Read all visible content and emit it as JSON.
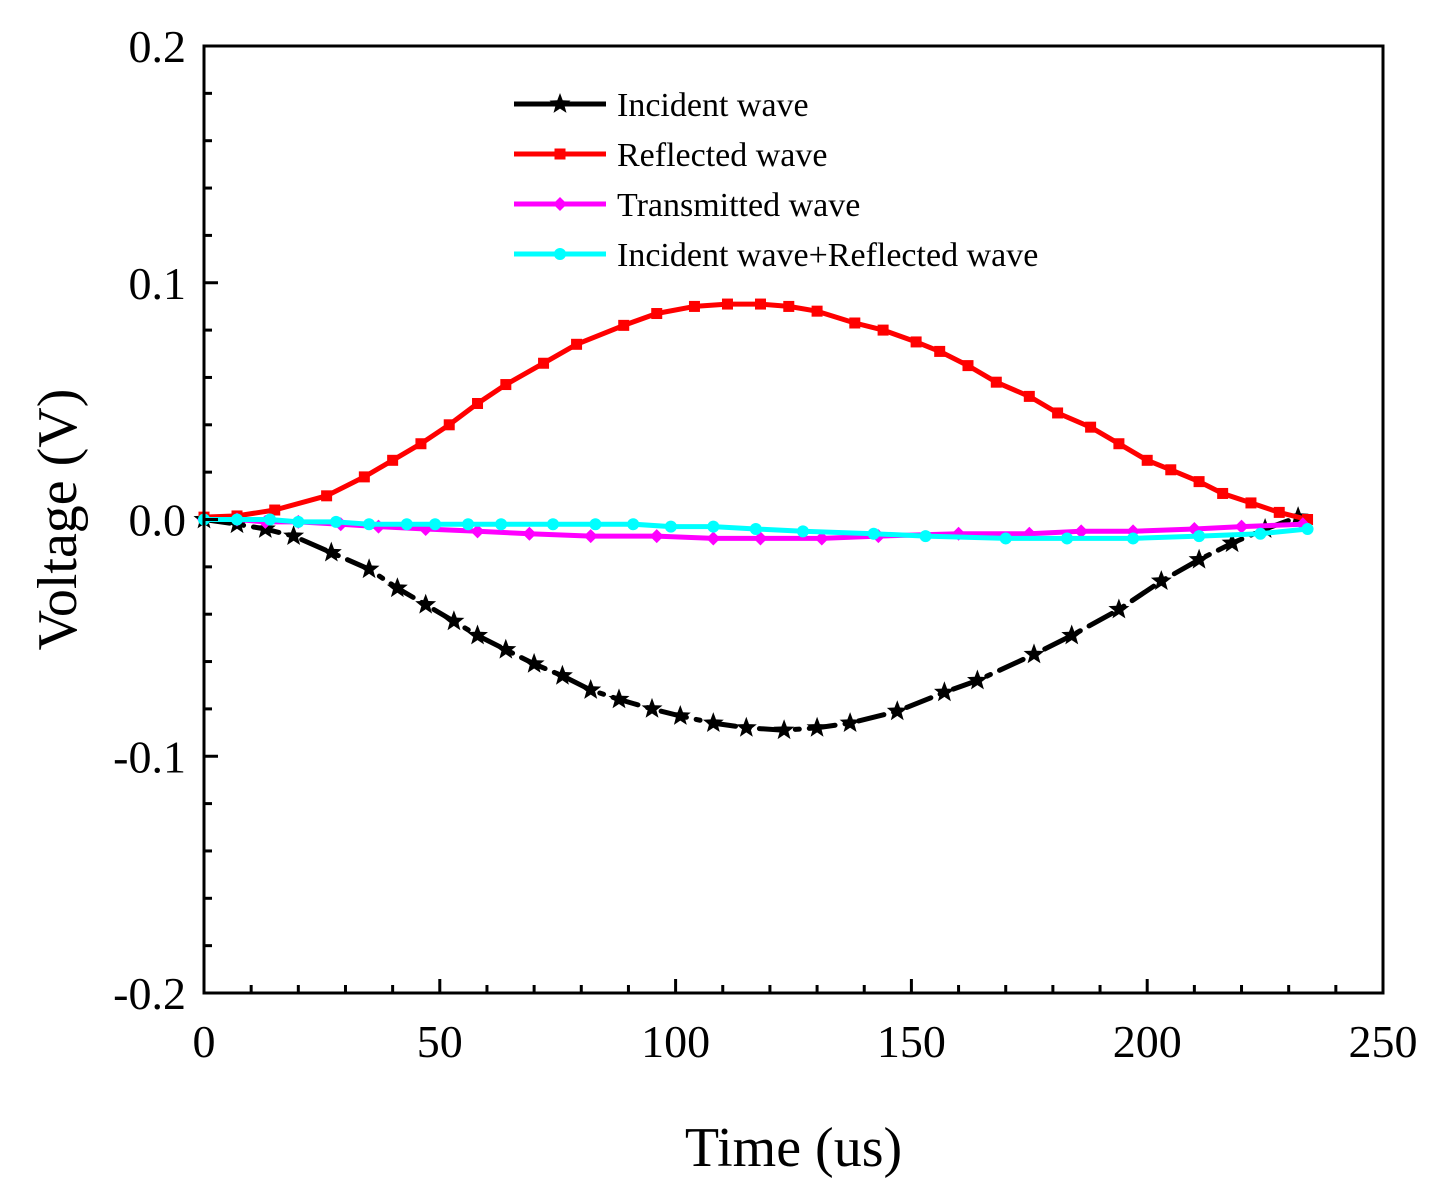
{
  "chart_data": {
    "type": "line",
    "title": "",
    "xlabel": "Time (us)",
    "ylabel": "Voltage (V)",
    "xlim": [
      0,
      250
    ],
    "ylim": [
      -0.2,
      0.2
    ],
    "xticks": [
      0,
      50,
      100,
      150,
      200,
      250
    ],
    "xtick_labels": [
      "0",
      "50",
      "100",
      "150",
      "200",
      "250"
    ],
    "yticks": [
      -0.2,
      -0.1,
      0.0,
      0.1,
      0.2
    ],
    "ytick_labels": [
      "-0.2",
      "-0.1",
      "0.0",
      "0.1",
      "0.2"
    ],
    "grid": false,
    "legend_position": "top-center",
    "series": [
      {
        "name": "Incident wave",
        "color": "#000000",
        "marker": "star",
        "x": [
          0,
          7,
          13,
          19,
          27,
          35,
          41,
          47,
          53,
          58,
          64,
          70,
          76,
          82,
          88,
          95,
          101,
          108,
          115,
          123,
          130,
          137,
          147,
          157,
          164,
          176,
          184,
          194,
          203,
          211,
          218,
          225,
          232
        ],
        "y": [
          0.0,
          -0.002,
          -0.004,
          -0.007,
          -0.014,
          -0.021,
          -0.029,
          -0.036,
          -0.043,
          -0.049,
          -0.055,
          -0.061,
          -0.066,
          -0.072,
          -0.076,
          -0.08,
          -0.083,
          -0.086,
          -0.088,
          -0.089,
          -0.088,
          -0.086,
          -0.081,
          -0.073,
          -0.068,
          -0.057,
          -0.049,
          -0.038,
          -0.026,
          -0.017,
          -0.01,
          -0.004,
          0.001
        ]
      },
      {
        "name": "Reflected wave",
        "color": "#ff0000",
        "marker": "square",
        "x": [
          0,
          7,
          15,
          26,
          34,
          40,
          46,
          52,
          58,
          64,
          72,
          79,
          89,
          96,
          104,
          111,
          118,
          124,
          130,
          138,
          144,
          151,
          156,
          162,
          168,
          175,
          181,
          188,
          194,
          200,
          205,
          211,
          216,
          222,
          228,
          234
        ],
        "y": [
          0.001,
          0.0015,
          0.004,
          0.01,
          0.018,
          0.025,
          0.032,
          0.04,
          0.049,
          0.057,
          0.066,
          0.074,
          0.082,
          0.087,
          0.09,
          0.091,
          0.091,
          0.09,
          0.088,
          0.083,
          0.08,
          0.075,
          0.071,
          0.065,
          0.058,
          0.052,
          0.045,
          0.039,
          0.032,
          0.025,
          0.021,
          0.016,
          0.011,
          0.007,
          0.003,
          0.0
        ]
      },
      {
        "name": "Transmitted wave",
        "color": "#ff00ff",
        "marker": "diamond",
        "x": [
          0,
          7,
          13,
          20,
          29,
          37,
          47,
          58,
          69,
          82,
          96,
          108,
          118,
          131,
          143,
          160,
          175,
          186,
          197,
          210,
          220,
          233
        ],
        "y": [
          0.0,
          0.0,
          -0.001,
          -0.001,
          -0.002,
          -0.003,
          -0.004,
          -0.005,
          -0.006,
          -0.007,
          -0.007,
          -0.008,
          -0.008,
          -0.008,
          -0.007,
          -0.006,
          -0.006,
          -0.005,
          -0.005,
          -0.004,
          -0.003,
          -0.002
        ]
      },
      {
        "name": "Incident wave+Reflected wave",
        "color": "#00ffff",
        "marker": "circle",
        "x": [
          0,
          7,
          14,
          20,
          28,
          35,
          43,
          49,
          56,
          63,
          74,
          83,
          91,
          99,
          108,
          117,
          127,
          142,
          153,
          170,
          183,
          197,
          211,
          224,
          234
        ],
        "y": [
          0.0,
          0.0,
          0.0,
          -0.001,
          -0.001,
          -0.002,
          -0.002,
          -0.002,
          -0.002,
          -0.002,
          -0.002,
          -0.002,
          -0.002,
          -0.003,
          -0.003,
          -0.004,
          -0.005,
          -0.006,
          -0.007,
          -0.008,
          -0.008,
          -0.008,
          -0.007,
          -0.006,
          -0.004
        ]
      }
    ]
  }
}
